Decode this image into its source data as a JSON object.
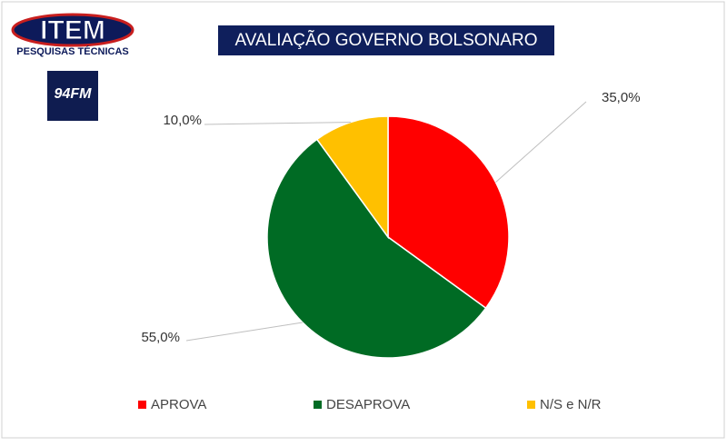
{
  "brand": "ITEM",
  "brand_subtitle": "PESQUISAS TÉCNICAS",
  "radio": "94FM",
  "chart_data": {
    "type": "pie",
    "title": "AVALIAÇÃO GOVERNO BOLSONARO",
    "categories": [
      "APROVA",
      "DESAPROVA",
      "N/S e N/R"
    ],
    "values": [
      35,
      55,
      10
    ],
    "value_labels": [
      "35,0%",
      "55,0%",
      "10,0%"
    ],
    "colors": [
      "#ff0000",
      "#006b24",
      "#ffc000"
    ]
  }
}
